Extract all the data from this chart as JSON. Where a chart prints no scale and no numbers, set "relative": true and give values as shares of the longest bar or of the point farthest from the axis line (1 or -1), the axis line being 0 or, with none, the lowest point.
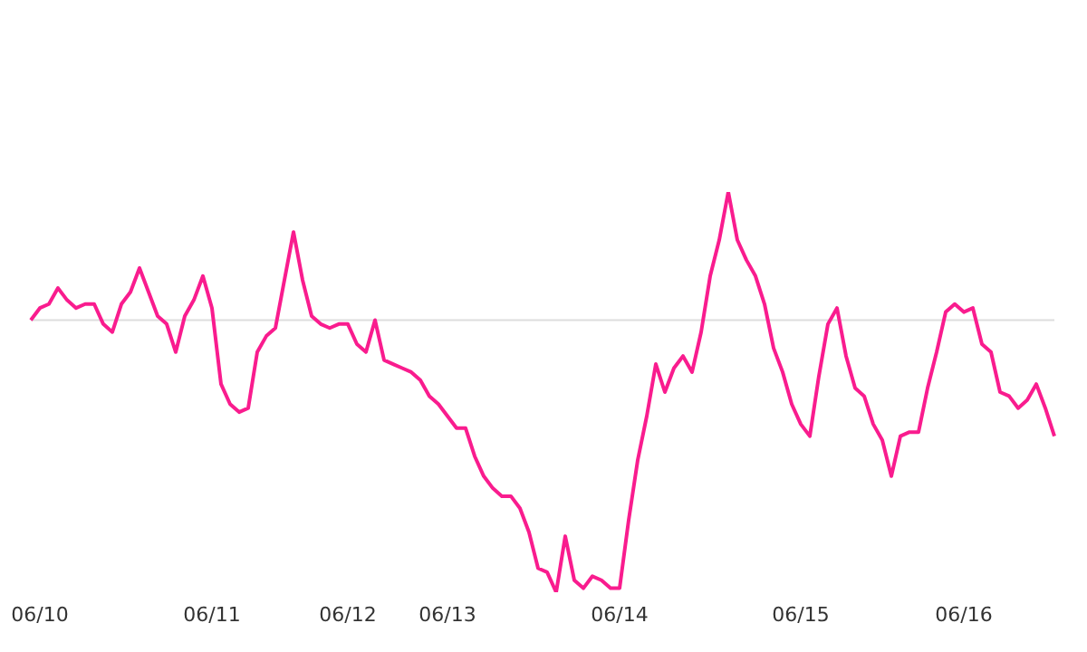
{
  "chart_data": {
    "type": "line",
    "relative": true,
    "categories": [
      null,
      "06/10",
      null,
      null,
      null,
      null,
      null,
      null,
      null,
      null,
      null,
      null,
      null,
      null,
      null,
      null,
      null,
      null,
      null,
      null,
      "06/11",
      null,
      null,
      null,
      null,
      null,
      null,
      null,
      null,
      null,
      null,
      null,
      null,
      null,
      null,
      "06/12",
      null,
      null,
      null,
      null,
      null,
      null,
      null,
      null,
      null,
      null,
      "06/13",
      null,
      null,
      null,
      null,
      null,
      null,
      null,
      null,
      null,
      null,
      null,
      null,
      null,
      null,
      null,
      null,
      null,
      null,
      "06/14",
      null,
      null,
      null,
      null,
      null,
      null,
      null,
      null,
      null,
      null,
      null,
      null,
      null,
      null,
      null,
      null,
      null,
      null,
      null,
      "06/15",
      null,
      null,
      null,
      null,
      null,
      null,
      null,
      null,
      null,
      null,
      null,
      null,
      null,
      null,
      null,
      null,
      null,
      "06/16",
      null,
      null,
      null,
      null,
      null,
      null,
      null,
      null,
      null,
      null
    ],
    "series": [
      {
        "color": "#f91c8e",
        "values": [
          0.68,
          0.71,
          0.72,
          0.76,
          0.73,
          0.71,
          0.72,
          0.72,
          0.67,
          0.65,
          0.72,
          0.75,
          0.81,
          0.75,
          0.69,
          0.67,
          0.6,
          0.69,
          0.73,
          0.79,
          0.71,
          0.52,
          0.47,
          0.45,
          0.46,
          0.6,
          0.64,
          0.66,
          0.78,
          0.9,
          0.78,
          0.69,
          0.67,
          0.66,
          0.67,
          0.67,
          0.62,
          0.6,
          0.68,
          0.58,
          0.57,
          0.56,
          0.55,
          0.53,
          0.49,
          0.47,
          0.44,
          0.41,
          0.41,
          0.34,
          0.29,
          0.26,
          0.24,
          0.24,
          0.21,
          0.15,
          0.06,
          0.05,
          0,
          0.14,
          0.03,
          0.01,
          0.04,
          0.03,
          0.01,
          0.01,
          0.18,
          0.33,
          0.44,
          0.57,
          0.5,
          0.56,
          0.59,
          0.55,
          0.65,
          0.79,
          0.88,
          1,
          0.88,
          0.83,
          0.79,
          0.72,
          0.61,
          0.55,
          0.47,
          0.42,
          0.39,
          0.54,
          0.67,
          0.71,
          0.59,
          0.51,
          0.49,
          0.42,
          0.38,
          0.29,
          0.39,
          0.4,
          0.4,
          0.51,
          0.6,
          0.7,
          0.72,
          0.7,
          0.71,
          0.62,
          0.6,
          0.5,
          0.49,
          0.46,
          0.48,
          0.52,
          0.46,
          0.39
        ]
      }
    ],
    "ref_lines": [
      {
        "axis": "y",
        "value": 0.68,
        "color": "#dddddd"
      }
    ]
  }
}
